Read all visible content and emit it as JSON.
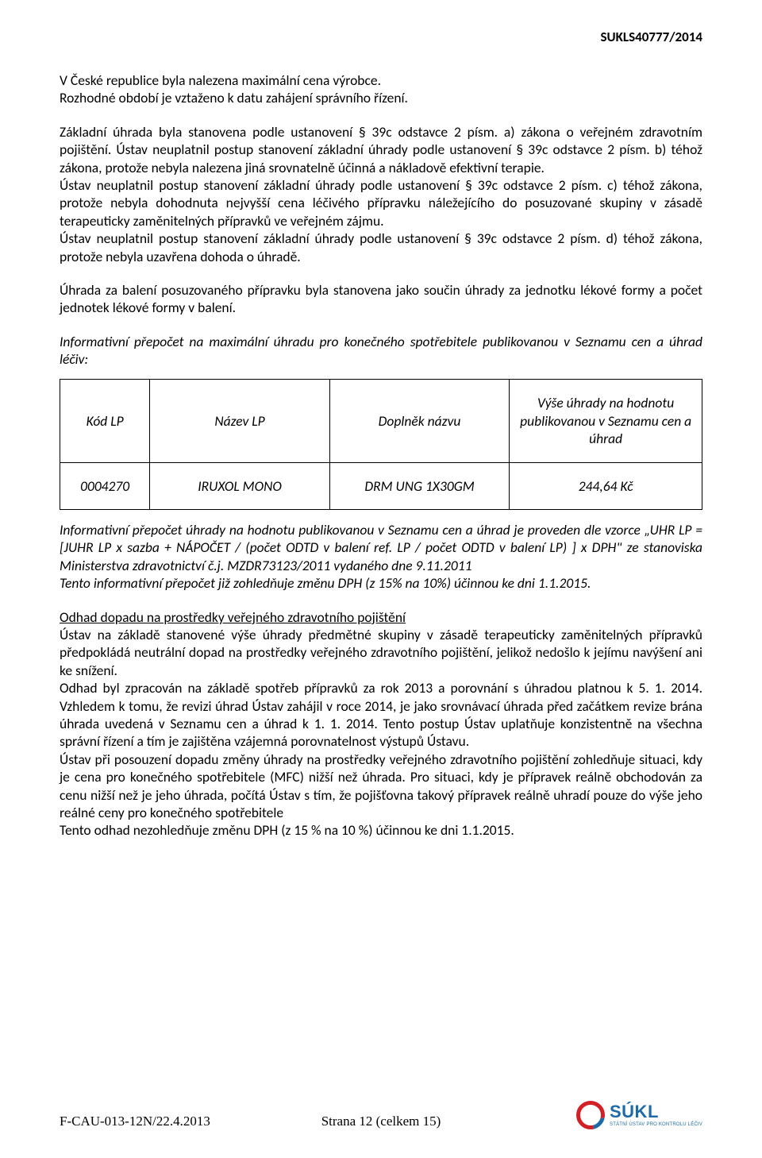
{
  "header": {
    "doc_code": "SUKLS40777/2014"
  },
  "body": {
    "p1": "V České republice byla nalezena maximální cena výrobce.",
    "p2": "Rozhodné období je vztaženo k datu zahájení správního řízení.",
    "p3": "Základní úhrada byla stanovena podle ustanovení § 39c odstavce 2 písm. a) zákona o veřejném zdravotním pojištění. Ústav neuplatnil postup stanovení základní úhrady podle ustanovení § 39c odstavce 2 písm. b) téhož zákona, protože nebyla nalezena jiná srovnatelně účinná a nákladově efektivní terapie.",
    "p4": "Ústav neuplatnil postup stanovení základní úhrady podle ustanovení § 39c odstavce 2 písm. c) téhož zákona, protože nebyla dohodnuta nejvyšší cena léčivého přípravku náležejícího do posuzované skupiny v zásadě terapeuticky zaměnitelných přípravků ve veřejném zájmu.",
    "p5": "Ústav neuplatnil postup stanovení základní úhrady podle ustanovení § 39c odstavce 2 písm. d) téhož zákona, protože nebyla uzavřena dohoda o úhradě.",
    "p6": "Úhrada za balení posuzovaného přípravku byla stanovena jako součin úhrady za jednotku lékové formy a počet jednotek lékové formy v balení.",
    "p7": "Informativní přepočet na maximální úhradu pro konečného spotřebitele publikovanou v Seznamu cen a úhrad léčiv:",
    "p8": "Informativní přepočet úhrady na hodnotu publikovanou v Seznamu cen a úhrad je proveden dle vzorce „UHR LP = [JUHR LP x sazba + NÁPOČET / (počet ODTD v balení ref. LP / počet ODTD v balení LP) ] x DPH\" ze stanoviska Ministerstva zdravotnictví č.j. MZDR73123/2011 vydaného dne 9.11.2011",
    "p9": "Tento informativní přepočet již zohledňuje změnu DPH (z 15% na 10%) účinnou ke dni 1.1.2015.",
    "h10": "Odhad dopadu na prostředky veřejného zdravotního pojištění",
    "p11": "Ústav na základě stanovené výše úhrady předmětné skupiny v zásadě terapeuticky zaměnitelných přípravků předpokládá neutrální dopad na prostředky veřejného zdravotního pojištění, jelikož nedošlo k jejímu navýšení ani ke snížení.",
    "p12": "Odhad byl zpracován na základě spotřeb přípravků za rok 2013 a porovnání s úhradou platnou k 5. 1. 2014. Vzhledem k tomu, že revizi úhrad Ústav zahájil v roce 2014, je jako srovnávací úhrada před začátkem revize brána úhrada uvedená v Seznamu cen a úhrad k 1. 1. 2014. Tento postup Ústav uplatňuje konzistentně na všechna správní řízení a tím je zajištěna vzájemná porovnatelnost výstupů Ústavu.",
    "p13": "Ústav při posouzení dopadu změny úhrady na prostředky veřejného zdravotního pojištění zohledňuje situaci, kdy je cena pro konečného spotřebitele (MFC) nižší než úhrada. Pro situaci, kdy je přípravek reálně obchodován za cenu nižší než je jeho úhrada, počítá Ústav s tím, že pojišťovna takový přípravek reálně uhradí pouze do výše jeho reálné ceny pro konečného spotřebitele",
    "p14": "Tento odhad nezohledňuje změnu DPH (z 15 % na 10 %) účinnou ke dni 1.1.2015."
  },
  "table": {
    "columns": {
      "kod": "Kód LP",
      "nazev": "Název LP",
      "doplnek": "Doplněk názvu",
      "vyse": "Výše úhrady na hodnotu publikovanou v Seznamu cen a úhrad"
    },
    "row": {
      "kod": "0004270",
      "nazev": "IRUXOL MONO",
      "doplnek": "DRM UNG 1X30GM",
      "vyse": "244,64 Kč"
    },
    "border_color": "#000000",
    "font_style": "italic",
    "col_widths_pct": [
      14,
      28,
      28,
      30
    ]
  },
  "footer": {
    "left": "F-CAU-013-12N/22.4.2013",
    "center": "Strana 12 (celkem 15)",
    "logo_text": "SÚKL",
    "logo_sub": "STÁTNÍ ÚSTAV PRO KONTROLU LÉČIV",
    "logo_primary": "#1e6aa7",
    "logo_accent": "#d22027"
  }
}
